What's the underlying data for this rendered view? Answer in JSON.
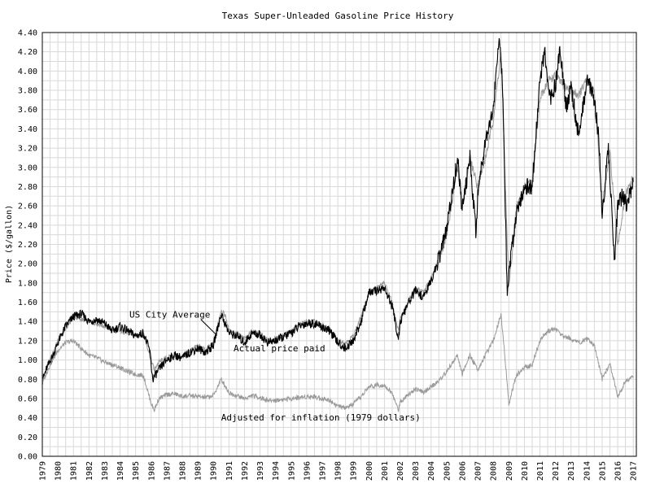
{
  "chart_data": {
    "type": "line",
    "title": "Texas Super-Unleaded Gasoline Price History",
    "ylabel": "Price ($/gallon)",
    "xlabel": "",
    "xlim": [
      1979,
      2017.2
    ],
    "ylim": [
      0,
      4.4
    ],
    "grid": true,
    "yticks": [
      "0.00",
      "0.20",
      "0.40",
      "0.60",
      "0.80",
      "1.00",
      "1.20",
      "1.40",
      "1.60",
      "1.80",
      "2.00",
      "2.20",
      "2.40",
      "2.60",
      "2.80",
      "3.00",
      "3.20",
      "3.40",
      "3.60",
      "3.80",
      "4.00",
      "4.20",
      "4.40"
    ],
    "xticks": [
      "1979",
      "1980",
      "1981",
      "1982",
      "1983",
      "1984",
      "1985",
      "1986",
      "1987",
      "1988",
      "1989",
      "1990",
      "1991",
      "1992",
      "1993",
      "1994",
      "1995",
      "1996",
      "1997",
      "1998",
      "1999",
      "2000",
      "2001",
      "2002",
      "2003",
      "2004",
      "2005",
      "2006",
      "2007",
      "2008",
      "2009",
      "2010",
      "2011",
      "2012",
      "2013",
      "2014",
      "2015",
      "2016",
      "2017"
    ],
    "annotations": [
      {
        "text": "US City Average",
        "x": 1984.6,
        "y": 1.44
      },
      {
        "text": "Actual price paid",
        "x": 1991.3,
        "y": 1.09
      },
      {
        "text": "Adjusted for inflation (1979 dollars)",
        "x": 1990.5,
        "y": 0.37
      }
    ],
    "series": [
      {
        "name": "US City Average",
        "color": "#9a9a9a",
        "x": [
          1979.0,
          1979.5,
          1980.0,
          1980.5,
          1981.0,
          1981.5,
          1982.0,
          1982.5,
          1983.0,
          1983.5,
          1984.0,
          1984.5,
          1985.0,
          1985.5,
          1986.0,
          1986.2,
          1986.5,
          1987.0,
          1987.5,
          1988.0,
          1988.5,
          1989.0,
          1989.5,
          1990.0,
          1990.5,
          1990.8,
          1991.0,
          1991.5,
          1992.0,
          1992.5,
          1993.0,
          1993.5,
          1994.0,
          1994.5,
          1995.0,
          1995.5,
          1996.0,
          1996.5,
          1997.0,
          1997.5,
          1998.0,
          1998.5,
          1999.0,
          1999.5,
          2000.0,
          2000.5,
          2001.0,
          2001.5,
          2001.9,
          2002.0,
          2002.5,
          2003.0,
          2003.5,
          2004.0,
          2004.5,
          2005.0,
          2005.7,
          2006.0,
          2006.5,
          2007.0,
          2007.5,
          2008.0,
          2008.5,
          2008.9,
          2009.0,
          2009.5,
          2010.0,
          2010.5,
          2011.0,
          2011.5,
          2012.0,
          2012.5,
          2013.0,
          2013.5,
          2014.0,
          2014.5,
          2015.0,
          2015.5,
          2016.0,
          2016.5,
          2017.0
        ],
        "y": [
          0.8,
          1.0,
          1.2,
          1.32,
          1.45,
          1.42,
          1.4,
          1.38,
          1.35,
          1.32,
          1.3,
          1.28,
          1.25,
          1.28,
          1.0,
          0.9,
          0.98,
          1.02,
          1.05,
          1.03,
          1.1,
          1.15,
          1.1,
          1.18,
          1.52,
          1.45,
          1.3,
          1.28,
          1.22,
          1.3,
          1.28,
          1.2,
          1.22,
          1.25,
          1.3,
          1.36,
          1.4,
          1.4,
          1.36,
          1.32,
          1.2,
          1.18,
          1.25,
          1.45,
          1.7,
          1.75,
          1.8,
          1.6,
          1.3,
          1.42,
          1.6,
          1.75,
          1.7,
          1.85,
          2.05,
          2.3,
          3.0,
          2.6,
          3.1,
          2.8,
          3.1,
          3.5,
          4.2,
          2.2,
          1.75,
          2.6,
          2.8,
          2.85,
          3.7,
          3.9,
          3.95,
          3.85,
          3.8,
          3.75,
          3.9,
          3.8,
          2.6,
          3.15,
          2.2,
          2.7,
          2.9
        ]
      },
      {
        "name": "Actual price paid",
        "color": "#000000",
        "x": [
          1979.0,
          1979.3,
          1979.7,
          1980.0,
          1980.5,
          1981.0,
          1981.5,
          1982.0,
          1982.5,
          1983.0,
          1983.5,
          1984.0,
          1984.5,
          1985.0,
          1985.5,
          1985.9,
          1986.1,
          1986.5,
          1987.0,
          1987.5,
          1988.0,
          1988.5,
          1989.0,
          1989.5,
          1990.0,
          1990.5,
          1990.7,
          1991.0,
          1991.5,
          1992.0,
          1992.5,
          1993.0,
          1993.5,
          1994.0,
          1994.5,
          1995.0,
          1995.5,
          1996.0,
          1996.5,
          1997.0,
          1997.5,
          1998.0,
          1998.5,
          1999.0,
          1999.5,
          2000.0,
          2000.5,
          2001.0,
          2001.5,
          2001.9,
          2002.0,
          2002.5,
          2003.0,
          2003.5,
          2004.0,
          2004.5,
          2005.0,
          2005.7,
          2006.0,
          2006.5,
          2006.9,
          2007.0,
          2007.5,
          2008.0,
          2008.4,
          2008.6,
          2008.9,
          2009.0,
          2009.5,
          2010.0,
          2010.5,
          2011.0,
          2011.3,
          2011.6,
          2012.0,
          2012.3,
          2012.7,
          2013.0,
          2013.5,
          2014.0,
          2014.4,
          2014.8,
          2015.0,
          2015.4,
          2015.8,
          2016.0,
          2016.3,
          2016.6,
          2017.0
        ],
        "y": [
          0.78,
          0.92,
          1.05,
          1.18,
          1.35,
          1.45,
          1.48,
          1.4,
          1.42,
          1.38,
          1.3,
          1.35,
          1.3,
          1.25,
          1.28,
          1.1,
          0.8,
          0.9,
          1.0,
          1.05,
          1.02,
          1.08,
          1.12,
          1.08,
          1.15,
          1.48,
          1.4,
          1.28,
          1.25,
          1.18,
          1.28,
          1.26,
          1.18,
          1.2,
          1.24,
          1.28,
          1.35,
          1.38,
          1.38,
          1.34,
          1.3,
          1.18,
          1.12,
          1.2,
          1.4,
          1.7,
          1.72,
          1.75,
          1.55,
          1.22,
          1.38,
          1.58,
          1.72,
          1.65,
          1.82,
          2.05,
          2.35,
          3.1,
          2.55,
          3.1,
          2.3,
          2.75,
          3.3,
          3.6,
          4.4,
          3.8,
          1.65,
          1.9,
          2.55,
          2.8,
          2.8,
          3.9,
          4.2,
          3.7,
          3.85,
          4.25,
          3.6,
          3.85,
          3.3,
          3.9,
          3.8,
          3.3,
          2.5,
          3.2,
          2.05,
          2.6,
          2.7,
          2.6,
          2.85
        ]
      },
      {
        "name": "Adjusted for inflation (1979 dollars)",
        "color": "#9a9a9a",
        "x": [
          1979.0,
          1979.5,
          1980.0,
          1980.5,
          1981.0,
          1981.5,
          1982.0,
          1982.5,
          1983.0,
          1983.5,
          1984.0,
          1984.5,
          1985.0,
          1985.5,
          1986.0,
          1986.2,
          1986.5,
          1987.0,
          1987.5,
          1988.0,
          1988.5,
          1989.0,
          1989.5,
          1990.0,
          1990.5,
          1990.8,
          1991.0,
          1991.5,
          1992.0,
          1992.5,
          1993.0,
          1993.5,
          1994.0,
          1994.5,
          1995.0,
          1995.5,
          1996.0,
          1996.5,
          1997.0,
          1997.5,
          1998.0,
          1998.5,
          1999.0,
          1999.5,
          2000.0,
          2000.5,
          2001.0,
          2001.5,
          2001.9,
          2002.0,
          2002.5,
          2003.0,
          2003.5,
          2004.0,
          2004.5,
          2005.0,
          2005.7,
          2006.0,
          2006.5,
          2007.0,
          2007.5,
          2008.0,
          2008.5,
          2008.9,
          2009.0,
          2009.5,
          2010.0,
          2010.5,
          2011.0,
          2011.5,
          2012.0,
          2012.5,
          2013.0,
          2013.5,
          2014.0,
          2014.5,
          2015.0,
          2015.5,
          2016.0,
          2016.5,
          2017.0
        ],
        "y": [
          0.76,
          0.95,
          1.1,
          1.18,
          1.2,
          1.12,
          1.05,
          1.02,
          0.98,
          0.95,
          0.92,
          0.88,
          0.85,
          0.84,
          0.55,
          0.48,
          0.6,
          0.64,
          0.65,
          0.62,
          0.63,
          0.62,
          0.61,
          0.63,
          0.8,
          0.72,
          0.66,
          0.63,
          0.6,
          0.63,
          0.61,
          0.58,
          0.58,
          0.59,
          0.6,
          0.61,
          0.62,
          0.62,
          0.6,
          0.58,
          0.52,
          0.5,
          0.54,
          0.62,
          0.72,
          0.74,
          0.74,
          0.65,
          0.48,
          0.56,
          0.64,
          0.7,
          0.66,
          0.72,
          0.78,
          0.88,
          1.05,
          0.85,
          1.05,
          0.9,
          1.05,
          1.2,
          1.48,
          0.75,
          0.55,
          0.85,
          0.92,
          0.95,
          1.2,
          1.3,
          1.32,
          1.25,
          1.22,
          1.18,
          1.22,
          1.15,
          0.8,
          0.96,
          0.62,
          0.78,
          0.82
        ]
      }
    ]
  }
}
